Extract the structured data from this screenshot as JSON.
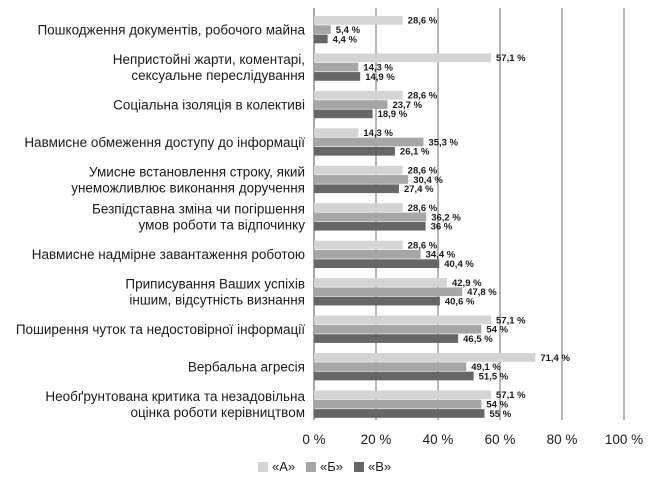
{
  "chart_data": {
    "type": "bar",
    "orientation": "horizontal",
    "xlim": [
      0,
      100
    ],
    "xticks": [
      "0 %",
      "20 %",
      "40 %",
      "60 %",
      "80 %",
      "100 %"
    ],
    "grid": true,
    "legend_position": "bottom-left",
    "categories": [
      [
        "Пошкодження документів, робочого майна"
      ],
      [
        "Непристойні жарти, коментарі,",
        "сексуальне переслідування"
      ],
      [
        "Соціальна ізоляція в колективі"
      ],
      [
        "Навмисне обмеження доступу до інформації"
      ],
      [
        "Умисне встановлення строку, який",
        "унеможливлює виконання доручення"
      ],
      [
        "Безпідставна зміна чи погіршення",
        "умов роботи та відпочинку"
      ],
      [
        "Навмисне надмірне завантаження роботою"
      ],
      [
        "Приписування Ваших успіхів",
        "іншим, відсутність визнання"
      ],
      [
        "Поширення чуток та недостовірної інформації"
      ],
      [
        "Вербальна агресія"
      ],
      [
        "Необґрунтована критика та незадовільна",
        "оцінка роботи керівництвом"
      ]
    ],
    "series": [
      {
        "name": "«А»",
        "color": "#d4d4d4",
        "values": [
          28.6,
          57.1,
          28.6,
          14.3,
          28.6,
          28.6,
          28.6,
          42.9,
          57.1,
          71.4,
          57.1
        ],
        "labels": [
          "28,6 %",
          "57,1 %",
          "28,6 %",
          "14,3 %",
          "28,6 %",
          "28,6 %",
          "28,6 %",
          "42,9 %",
          "57,1 %",
          "71,4 %",
          "57,1 %"
        ]
      },
      {
        "name": "«Б»",
        "color": "#a6a6a6",
        "values": [
          5.4,
          14.3,
          23.7,
          35.3,
          30.4,
          36.2,
          34.4,
          47.8,
          54,
          49.1,
          54
        ],
        "labels": [
          "5,4 %",
          "14,3 %",
          "23,7 %",
          "35,3 %",
          "30,4 %",
          "36,2 %",
          "34,4 %",
          "47,8 %",
          "54 %",
          "49,1 %",
          "54 %"
        ]
      },
      {
        "name": "«В»",
        "color": "#666666",
        "values": [
          4.4,
          14.9,
          18.9,
          26.1,
          27.4,
          36,
          40.4,
          40.6,
          46.5,
          51.5,
          55
        ],
        "labels": [
          "4,4 %",
          "14,9 %",
          "18,9 %",
          "26,1 %",
          "27,4 %",
          "36 %",
          "40,4 %",
          "40,6 %",
          "46,5 %",
          "51,5 %",
          "55 %"
        ]
      }
    ],
    "colors": {
      "grid": "#6e6e6e",
      "axis": "#6e6e6e"
    }
  }
}
